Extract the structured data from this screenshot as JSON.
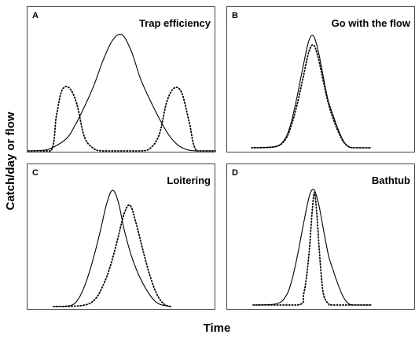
{
  "figure": {
    "ylabel": "Catch/day or flow",
    "xlabel": "Time"
  },
  "chart_data": [
    {
      "type": "line",
      "panel": "A",
      "title": "Trap efficiency",
      "grid": false,
      "xlim": [
        0,
        1
      ],
      "ylim": [
        0,
        1
      ],
      "series": [
        {
          "style": "solid",
          "x": [
            0.0,
            0.1,
            0.2,
            0.25,
            0.3,
            0.35,
            0.4,
            0.45,
            0.5,
            0.55,
            0.6,
            0.65,
            0.7,
            0.75,
            0.8,
            0.85,
            0.9,
            1.0
          ],
          "values": [
            0.0,
            0.01,
            0.1,
            0.22,
            0.38,
            0.56,
            0.78,
            0.95,
            1.0,
            0.86,
            0.62,
            0.44,
            0.28,
            0.14,
            0.05,
            0.01,
            0.0,
            0.0
          ]
        },
        {
          "style": "dotted",
          "x": [
            0.0,
            0.12,
            0.15,
            0.18,
            0.22,
            0.26,
            0.3,
            0.35,
            0.4,
            0.5,
            0.6,
            0.65,
            0.7,
            0.74,
            0.78,
            0.82,
            0.86,
            0.9,
            1.0
          ],
          "values": [
            0.0,
            0.0,
            0.3,
            0.52,
            0.54,
            0.4,
            0.12,
            0.02,
            0.0,
            0.0,
            0.0,
            0.02,
            0.14,
            0.42,
            0.54,
            0.5,
            0.25,
            0.0,
            0.0
          ]
        }
      ]
    },
    {
      "type": "line",
      "panel": "B",
      "title": "Go with the flow",
      "grid": false,
      "xlim": [
        0,
        1
      ],
      "ylim": [
        0,
        1
      ],
      "series": [
        {
          "style": "solid",
          "x": [
            0.0,
            0.2,
            0.28,
            0.33,
            0.38,
            0.43,
            0.48,
            0.52,
            0.56,
            0.6,
            0.64,
            0.68,
            0.72,
            0.76,
            0.8,
            0.85,
            1.0
          ],
          "values": [
            0.0,
            0.01,
            0.08,
            0.22,
            0.45,
            0.72,
            0.96,
            1.0,
            0.86,
            0.64,
            0.43,
            0.3,
            0.18,
            0.08,
            0.02,
            0.0,
            0.0
          ]
        },
        {
          "style": "dotted",
          "x": [
            0.0,
            0.2,
            0.28,
            0.33,
            0.38,
            0.43,
            0.48,
            0.52,
            0.56,
            0.6,
            0.64,
            0.68,
            0.72,
            0.76,
            0.8,
            0.85,
            1.0
          ],
          "values": [
            0.0,
            0.01,
            0.07,
            0.19,
            0.38,
            0.62,
            0.86,
            0.92,
            0.8,
            0.6,
            0.41,
            0.27,
            0.16,
            0.07,
            0.02,
            0.0,
            0.0
          ]
        }
      ]
    },
    {
      "type": "line",
      "panel": "C",
      "title": "Loitering",
      "grid": false,
      "xlim": [
        0,
        1
      ],
      "ylim": [
        0,
        1
      ],
      "series": [
        {
          "style": "solid",
          "x": [
            0.0,
            0.15,
            0.22,
            0.28,
            0.34,
            0.4,
            0.45,
            0.5,
            0.55,
            0.6,
            0.66,
            0.72,
            0.78,
            0.84,
            0.9,
            1.0
          ],
          "values": [
            0.0,
            0.01,
            0.08,
            0.22,
            0.42,
            0.66,
            0.88,
            1.0,
            0.9,
            0.66,
            0.44,
            0.28,
            0.16,
            0.07,
            0.02,
            0.0
          ]
        },
        {
          "style": "dotted",
          "x": [
            0.0,
            0.25,
            0.35,
            0.42,
            0.48,
            0.54,
            0.6,
            0.65,
            0.7,
            0.76,
            0.82,
            0.88,
            0.94,
            1.0
          ],
          "values": [
            0.0,
            0.01,
            0.06,
            0.18,
            0.34,
            0.56,
            0.8,
            0.87,
            0.72,
            0.48,
            0.26,
            0.1,
            0.02,
            0.0
          ]
        }
      ]
    },
    {
      "type": "line",
      "panel": "D",
      "title": "Bathtub",
      "grid": false,
      "xlim": [
        0,
        1
      ],
      "ylim": [
        0,
        1
      ],
      "series": [
        {
          "style": "solid",
          "x": [
            0.0,
            0.2,
            0.28,
            0.33,
            0.38,
            0.43,
            0.48,
            0.52,
            0.56,
            0.6,
            0.64,
            0.68,
            0.72,
            0.76,
            0.8,
            0.85,
            1.0
          ],
          "values": [
            0.0,
            0.01,
            0.08,
            0.22,
            0.45,
            0.72,
            0.96,
            1.0,
            0.86,
            0.64,
            0.43,
            0.3,
            0.18,
            0.08,
            0.02,
            0.0,
            0.0
          ]
        },
        {
          "style": "dotted",
          "x": [
            0.0,
            0.38,
            0.43,
            0.47,
            0.5,
            0.52,
            0.54,
            0.56,
            0.58,
            0.6,
            0.64,
            0.68,
            1.0
          ],
          "values": [
            0.0,
            0.0,
            0.1,
            0.4,
            0.8,
            0.98,
            0.8,
            0.5,
            0.24,
            0.08,
            0.01,
            0.0,
            0.0
          ]
        }
      ]
    }
  ]
}
